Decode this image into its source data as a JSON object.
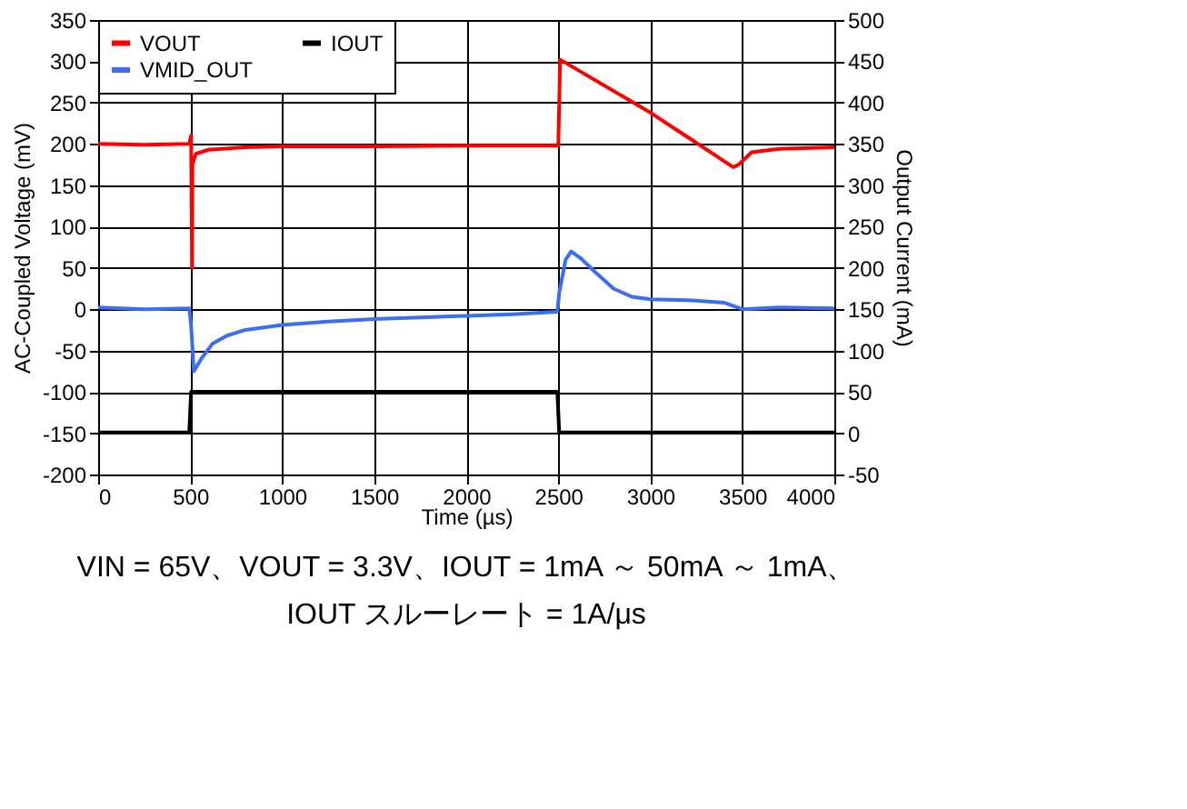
{
  "chart_data": {
    "type": "line",
    "xlabel": "Time (µs)",
    "ylabel": "AC-Coupled Voltage (mV)",
    "y2label": "Output Current (mA)",
    "xlim": [
      0,
      4000
    ],
    "xticks": [
      0,
      500,
      1000,
      1500,
      2000,
      2500,
      3000,
      3500,
      4000
    ],
    "ylim": [
      -200,
      350
    ],
    "yticks": [
      -200,
      -150,
      -100,
      -50,
      0,
      50,
      100,
      150,
      200,
      250,
      300,
      350
    ],
    "y2lim": [
      -50,
      500
    ],
    "y2ticks": [
      -50,
      0,
      50,
      100,
      150,
      200,
      250,
      300,
      350,
      400,
      450,
      500
    ],
    "grid": true,
    "legend": "top left",
    "line_style": "solid",
    "series": [
      {
        "name": "VOUT",
        "color": "#ff0000",
        "x": [
          0,
          250,
          495,
          505,
          510,
          512,
          530,
          600,
          800,
          1000,
          1500,
          2000,
          2495,
          2500,
          2510,
          3000,
          3450,
          3480,
          3550,
          3700,
          4000
        ],
        "values": [
          200,
          199,
          200,
          210,
          50,
          175,
          188,
          193,
          196,
          197,
          197,
          198,
          198,
          198,
          302,
          238,
          172,
          175,
          190,
          194,
          196
        ]
      },
      {
        "name": "VMID_OUT",
        "color": "#3c6ef0",
        "x": [
          0,
          250,
          495,
          505,
          520,
          560,
          620,
          700,
          800,
          1000,
          1250,
          1500,
          1750,
          2000,
          2250,
          2495,
          2505,
          2540,
          2570,
          2620,
          2700,
          2800,
          2900,
          3000,
          3200,
          3400,
          3500,
          3700,
          4000
        ],
        "values": [
          2,
          0,
          1,
          -20,
          -75,
          -60,
          -42,
          -32,
          -25,
          -19,
          -15,
          -12,
          -10,
          -8,
          -6,
          -3,
          20,
          60,
          70,
          62,
          45,
          25,
          15,
          12,
          11,
          8,
          0,
          2,
          1
        ]
      },
      {
        "name": "IOUT",
        "color": "#000000",
        "axis": "y2",
        "x": [
          0,
          495,
          505,
          1000,
          1500,
          2000,
          2495,
          2505,
          3000,
          3500,
          4000
        ],
        "values": [
          1,
          1,
          50,
          50,
          50,
          50,
          50,
          1,
          1,
          1,
          1
        ]
      }
    ],
    "annotations": [
      "VIN = 65V、VOUT = 3.3V、IOUT = 1mA ～ 50mA ～ 1mA、",
      "IOUT スルーレート = 1A/μs"
    ]
  }
}
